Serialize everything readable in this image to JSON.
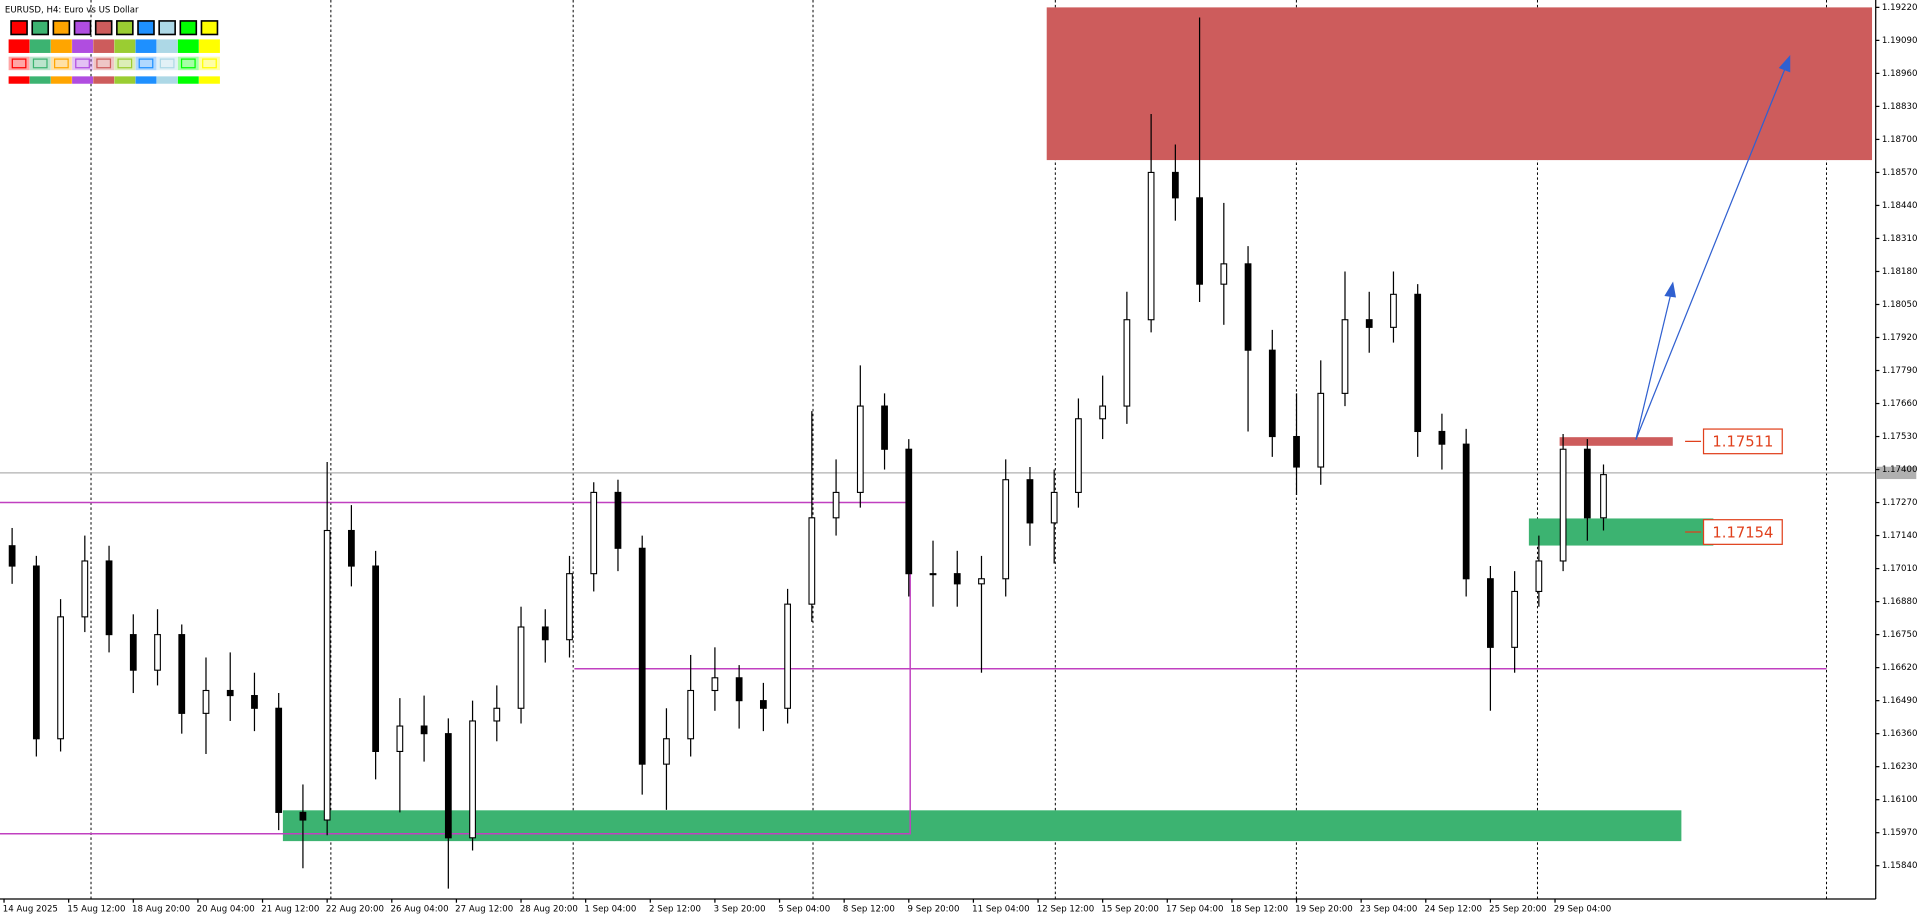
{
  "chart_data": {
    "type": "candlestick",
    "title": "EURUSD, H4:  Euro vs US Dollar",
    "x": [
      1,
      4,
      7,
      10,
      13,
      16,
      19,
      22,
      25,
      28,
      31,
      34,
      37,
      40,
      43,
      46,
      49,
      52,
      55,
      58,
      61,
      64,
      67,
      70,
      73,
      76,
      79,
      82,
      85,
      88,
      91,
      94,
      97,
      100,
      103,
      106,
      109,
      112,
      115,
      118,
      121,
      124,
      127,
      130,
      133,
      136,
      139,
      142,
      145,
      148,
      151,
      154,
      157,
      160,
      163,
      166,
      169,
      172,
      175,
      178,
      181,
      184,
      187,
      190,
      193,
      196,
      198
    ],
    "open": [
      1.171,
      1.1702,
      1.1634,
      1.1682,
      1.1704,
      1.1675,
      1.1661,
      1.1675,
      1.1644,
      1.1653,
      1.1651,
      1.1646,
      1.1605,
      1.1602,
      1.1716,
      1.1702,
      1.1629,
      1.1639,
      1.1636,
      1.1595,
      1.1641,
      1.1646,
      1.1678,
      1.1673,
      1.1699,
      1.1731,
      1.1709,
      1.1624,
      1.1634,
      1.1653,
      1.1658,
      1.1649,
      1.1646,
      1.1687,
      1.1721,
      1.1731,
      1.1765,
      1.1748,
      1.1699,
      1.1699,
      1.1695,
      1.1697,
      1.1736,
      1.1719,
      1.1731,
      1.176,
      1.1765,
      1.1799,
      1.1857,
      1.1847,
      1.1813,
      1.1821,
      1.1787,
      1.1753,
      1.1741,
      1.177,
      1.1799,
      1.1796,
      1.1809,
      1.1755,
      1.175,
      1.1697,
      1.167,
      1.1692,
      1.1704,
      1.1748,
      1.1721
    ],
    "high": [
      1.1717,
      1.1706,
      1.1689,
      1.1714,
      1.171,
      1.1683,
      1.1685,
      1.1679,
      1.1666,
      1.1668,
      1.166,
      1.1652,
      1.1616,
      1.1743,
      1.1726,
      1.1708,
      1.165,
      1.1651,
      1.1642,
      1.1649,
      1.1655,
      1.1686,
      1.1685,
      1.1706,
      1.1735,
      1.1736,
      1.1714,
      1.1646,
      1.1667,
      1.167,
      1.1663,
      1.1656,
      1.1693,
      1.1763,
      1.1744,
      1.1781,
      1.177,
      1.1752,
      1.1712,
      1.1708,
      1.1706,
      1.1744,
      1.1741,
      1.174,
      1.1768,
      1.1777,
      1.181,
      1.188,
      1.1868,
      1.1918,
      1.1845,
      1.1828,
      1.1795,
      1.177,
      1.1783,
      1.1818,
      1.181,
      1.1818,
      1.1813,
      1.1762,
      1.1756,
      1.1702,
      1.17,
      1.1714,
      1.1754,
      1.1752,
      1.1742
    ],
    "low": [
      1.1695,
      1.1627,
      1.1629,
      1.1676,
      1.1668,
      1.1652,
      1.1655,
      1.1636,
      1.1628,
      1.1641,
      1.1637,
      1.1598,
      1.1583,
      1.1596,
      1.1694,
      1.1618,
      1.1605,
      1.1625,
      1.1575,
      1.159,
      1.1633,
      1.164,
      1.1664,
      1.1666,
      1.1692,
      1.17,
      1.1612,
      1.1606,
      1.1627,
      1.1645,
      1.1638,
      1.1637,
      1.164,
      1.168,
      1.1714,
      1.1725,
      1.174,
      1.169,
      1.1686,
      1.1686,
      1.166,
      1.169,
      1.171,
      1.1703,
      1.1725,
      1.1752,
      1.1758,
      1.1794,
      1.1838,
      1.1806,
      1.1797,
      1.1755,
      1.1745,
      1.173,
      1.1734,
      1.1765,
      1.1786,
      1.179,
      1.1745,
      1.174,
      1.169,
      1.1645,
      1.166,
      1.1686,
      1.17,
      1.1712,
      1.1716
    ],
    "close": [
      1.1702,
      1.1634,
      1.1682,
      1.1704,
      1.1675,
      1.1661,
      1.1675,
      1.1644,
      1.1653,
      1.1651,
      1.1646,
      1.1605,
      1.1602,
      1.1716,
      1.1702,
      1.1629,
      1.1639,
      1.1636,
      1.1595,
      1.1641,
      1.1646,
      1.1678,
      1.1673,
      1.1699,
      1.1731,
      1.1709,
      1.1624,
      1.1634,
      1.1653,
      1.1658,
      1.1649,
      1.1646,
      1.1687,
      1.1721,
      1.1731,
      1.1765,
      1.1748,
      1.1699,
      1.1699,
      1.1695,
      1.1697,
      1.1736,
      1.1719,
      1.1731,
      1.176,
      1.1765,
      1.1799,
      1.1857,
      1.1847,
      1.1813,
      1.1821,
      1.1787,
      1.1753,
      1.1741,
      1.177,
      1.1799,
      1.1796,
      1.1809,
      1.1755,
      1.175,
      1.1697,
      1.167,
      1.1692,
      1.1704,
      1.1748,
      1.1721,
      1.1738
    ],
    "up_color": "#ffffff",
    "down_color": "#000000",
    "xlim": [
      -0.5,
      231.7
    ],
    "ylim": [
      1.15709,
      1.19249
    ],
    "xticks": [
      {
        "value": 0,
        "label": "14 Aug 2025"
      },
      {
        "value": 8,
        "label": "15 Aug 12:00"
      },
      {
        "value": 16,
        "label": "18 Aug 20:00"
      },
      {
        "value": 24,
        "label": "20 Aug 04:00"
      },
      {
        "value": 32,
        "label": "21 Aug 12:00"
      },
      {
        "value": 40,
        "label": "22 Aug 20:00"
      },
      {
        "value": 48,
        "label": "26 Aug 04:00"
      },
      {
        "value": 56,
        "label": "27 Aug 12:00"
      },
      {
        "value": 64,
        "label": "28 Aug 20:00"
      },
      {
        "value": 72,
        "label": "1 Sep 04:00"
      },
      {
        "value": 80,
        "label": "2 Sep 12:00"
      },
      {
        "value": 88,
        "label": "3 Sep 20:00"
      },
      {
        "value": 96,
        "label": "5 Sep 04:00"
      },
      {
        "value": 104,
        "label": "8 Sep 12:00"
      },
      {
        "value": 112,
        "label": "9 Sep 20:00"
      },
      {
        "value": 120,
        "label": "11 Sep 04:00"
      },
      {
        "value": 128,
        "label": "12 Sep 12:00"
      },
      {
        "value": 136,
        "label": "15 Sep 20:00"
      },
      {
        "value": 144,
        "label": "17 Sep 04:00"
      },
      {
        "value": 152,
        "label": "18 Sep 12:00"
      },
      {
        "value": 160,
        "label": "19 Sep 20:00"
      },
      {
        "value": 168,
        "label": "23 Sep 04:00"
      },
      {
        "value": 176,
        "label": "24 Sep 12:00"
      },
      {
        "value": 184,
        "label": "25 Sep 20:00"
      },
      {
        "value": 192,
        "label": "29 Sep 04:00"
      }
    ],
    "yticks": [
      {
        "value": 1.1584,
        "label": "1.15840"
      },
      {
        "value": 1.1597,
        "label": "1.15970"
      },
      {
        "value": 1.161,
        "label": "1.16100"
      },
      {
        "value": 1.1623,
        "label": "1.16230"
      },
      {
        "value": 1.1636,
        "label": "1.16360"
      },
      {
        "value": 1.1649,
        "label": "1.16490"
      },
      {
        "value": 1.1662,
        "label": "1.16620"
      },
      {
        "value": 1.1675,
        "label": "1.16750"
      },
      {
        "value": 1.1688,
        "label": "1.16880"
      },
      {
        "value": 1.1701,
        "label": "1.17010"
      },
      {
        "value": 1.1714,
        "label": "1.17140"
      },
      {
        "value": 1.1727,
        "label": "1.17270"
      },
      {
        "value": 1.174,
        "label": "1.17400"
      },
      {
        "value": 1.1753,
        "label": "1.17530"
      },
      {
        "value": 1.1766,
        "label": "1.17660"
      },
      {
        "value": 1.1779,
        "label": "1.17790"
      },
      {
        "value": 1.1792,
        "label": "1.17920"
      },
      {
        "value": 1.1805,
        "label": "1.18050"
      },
      {
        "value": 1.1818,
        "label": "1.18180"
      },
      {
        "value": 1.1831,
        "label": "1.18310"
      },
      {
        "value": 1.1844,
        "label": "1.18440"
      },
      {
        "value": 1.1857,
        "label": "1.18570"
      },
      {
        "value": 1.187,
        "label": "1.18700"
      },
      {
        "value": 1.1883,
        "label": "1.18830"
      },
      {
        "value": 1.1896,
        "label": "1.18960"
      },
      {
        "value": 1.1909,
        "label": "1.19090"
      },
      {
        "value": 1.1922,
        "label": "1.19220"
      }
    ],
    "levels": [
      1.17511,
      1.17154
    ]
  }
}
